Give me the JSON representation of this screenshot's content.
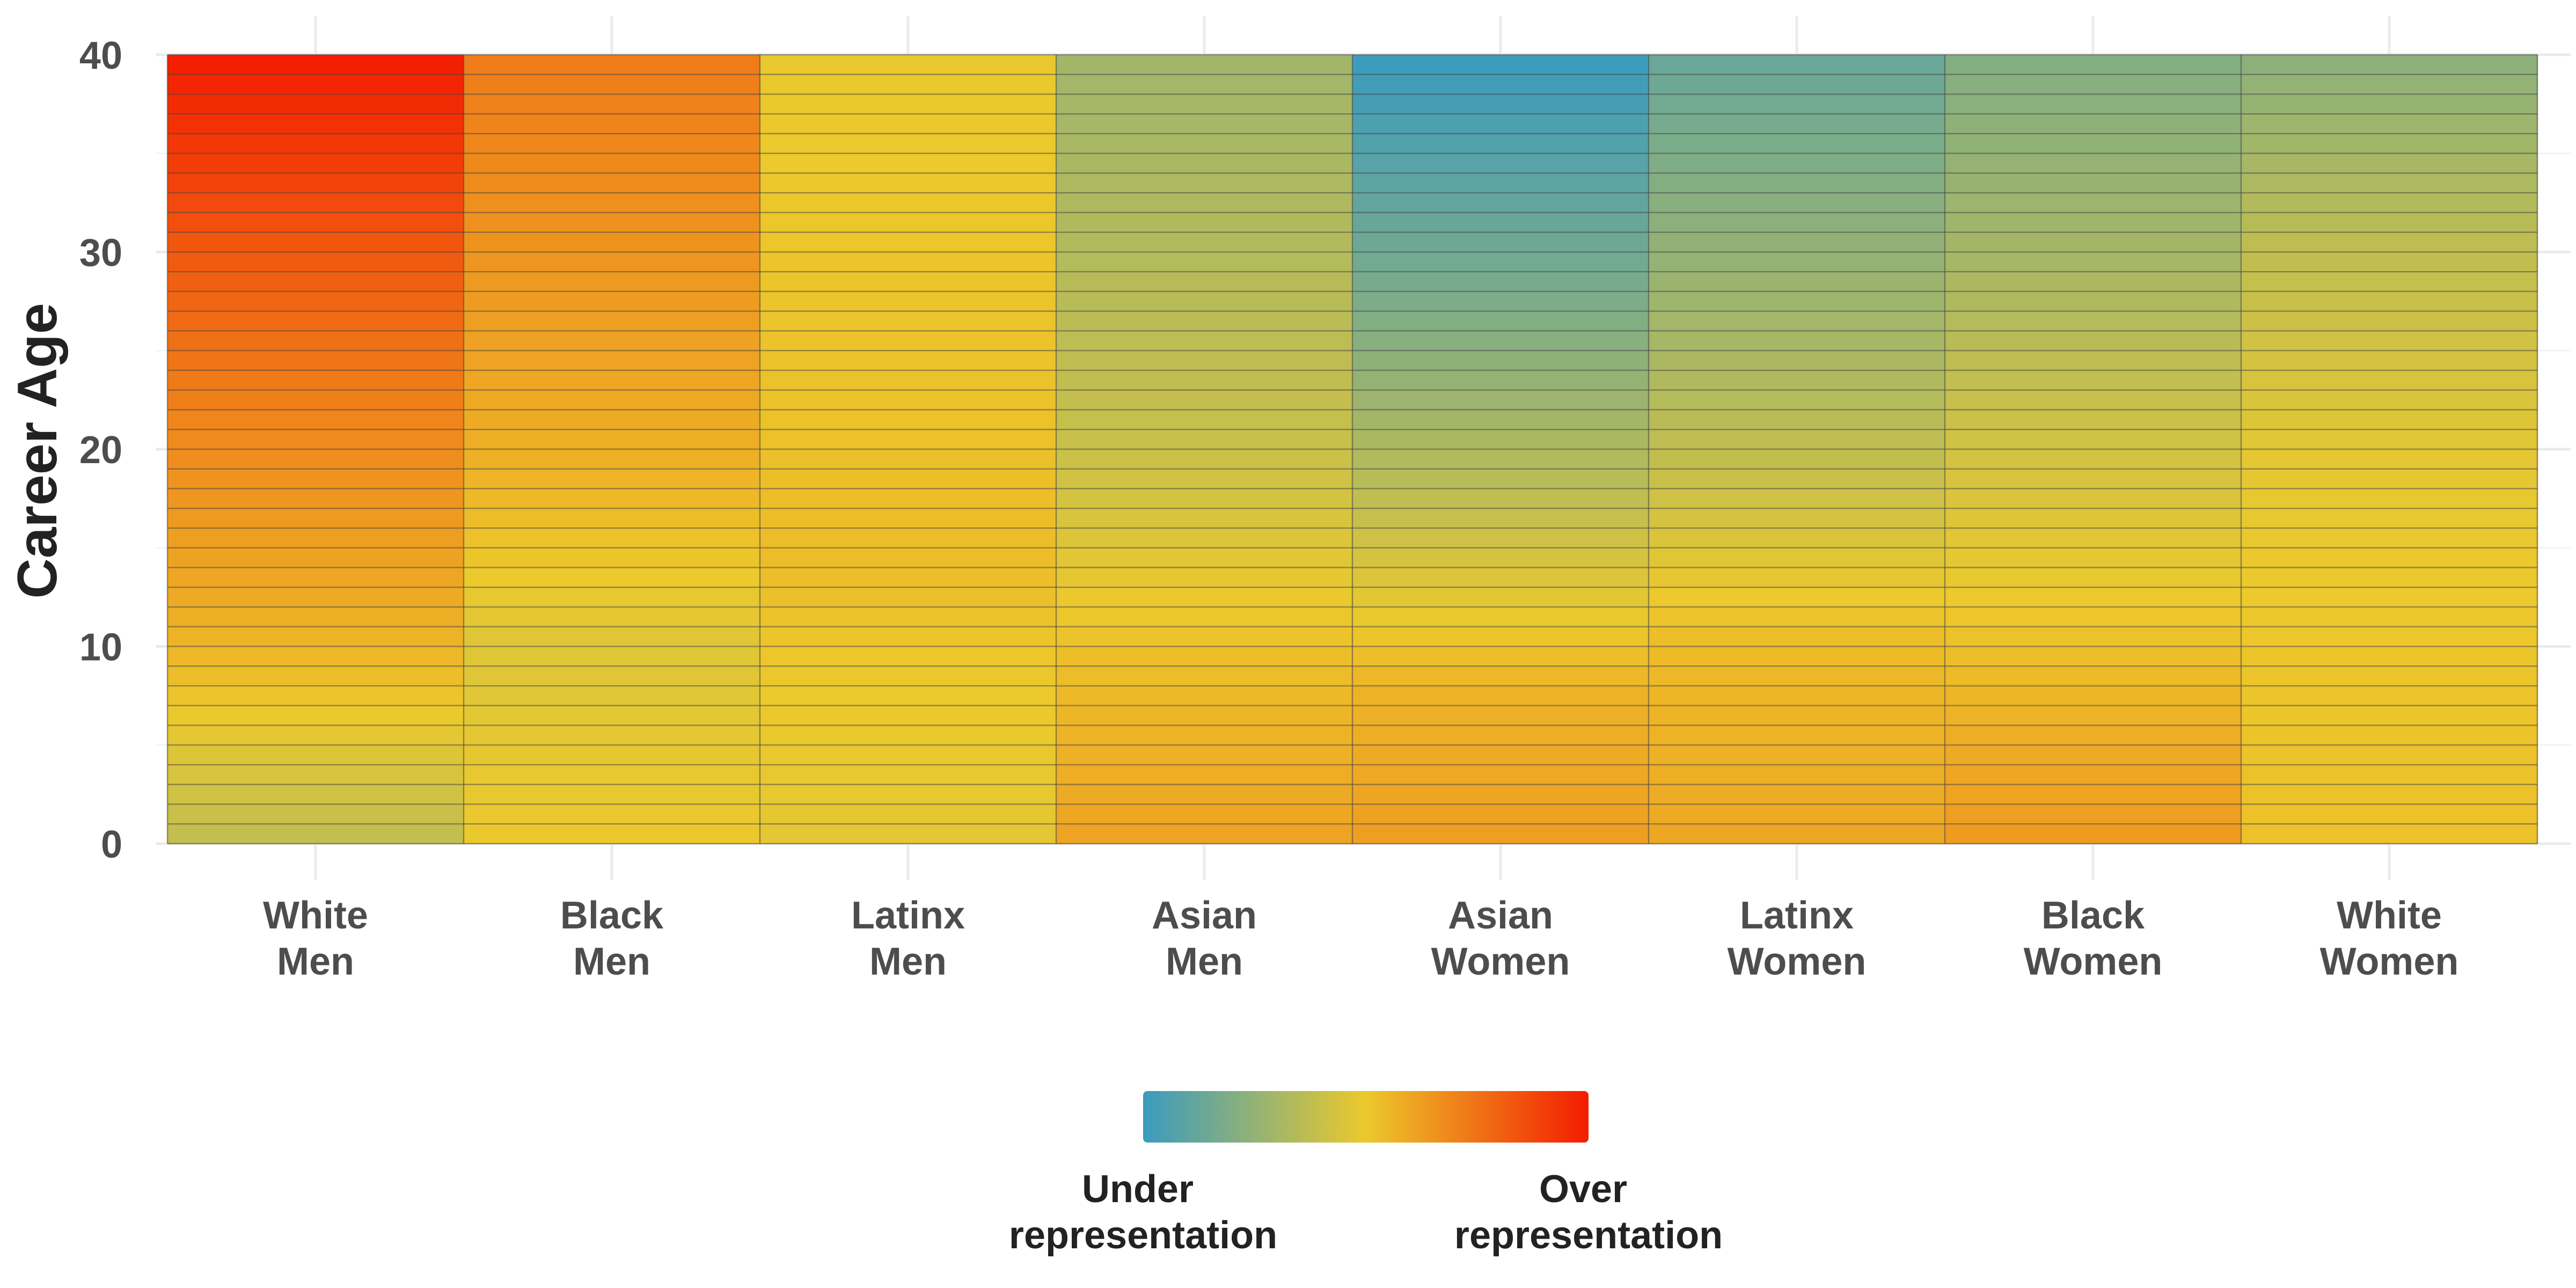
{
  "chart_data": {
    "type": "heatmap",
    "title": "",
    "xlabel": "",
    "ylabel": "Career Age",
    "categories": [
      [
        "White",
        "Men"
      ],
      [
        "Black",
        "Men"
      ],
      [
        "Latinx",
        "Men"
      ],
      [
        "Asian",
        "Men"
      ],
      [
        "Asian",
        "Women"
      ],
      [
        "Latinx",
        "Women"
      ],
      [
        "Black",
        "Women"
      ],
      [
        "White",
        "Women"
      ]
    ],
    "y": {
      "min": 0,
      "max": 40,
      "ticks": [
        0,
        10,
        20,
        30,
        40
      ],
      "cell_step": 1
    },
    "value_scale": {
      "min": -1,
      "max": 1,
      "mid": 0
    },
    "colors": {
      "low": "#3a9bbf",
      "mid": "#ecc92c",
      "high": "#f41c00"
    },
    "legend": {
      "position": "bottom",
      "low_label": [
        "Under",
        "representation"
      ],
      "high_label": [
        "Over",
        "representation"
      ]
    },
    "grid": true,
    "series": [
      {
        "anchors": [
          [
            0,
            -0.25
          ],
          [
            10,
            0.12
          ],
          [
            20,
            0.35
          ],
          [
            30,
            0.65
          ],
          [
            40,
            1.0
          ]
        ]
      },
      {
        "anchors": [
          [
            0,
            0.0
          ],
          [
            10,
            -0.08
          ],
          [
            20,
            0.15
          ],
          [
            30,
            0.3
          ],
          [
            40,
            0.45
          ]
        ]
      },
      {
        "anchors": [
          [
            0,
            -0.05
          ],
          [
            10,
            0.02
          ],
          [
            15,
            0.08
          ],
          [
            20,
            0.05
          ],
          [
            30,
            0.02
          ],
          [
            40,
            -0.02
          ]
        ]
      },
      {
        "anchors": [
          [
            0,
            0.22
          ],
          [
            10,
            0.05
          ],
          [
            20,
            -0.2
          ],
          [
            30,
            -0.32
          ],
          [
            40,
            -0.42
          ]
        ]
      },
      {
        "anchors": [
          [
            0,
            0.25
          ],
          [
            8,
            0.12
          ],
          [
            15,
            -0.15
          ],
          [
            25,
            -0.55
          ],
          [
            40,
            -1.0
          ]
        ]
      },
      {
        "anchors": [
          [
            0,
            0.2
          ],
          [
            10,
            0.08
          ],
          [
            20,
            -0.25
          ],
          [
            30,
            -0.5
          ],
          [
            40,
            -0.75
          ]
        ]
      },
      {
        "anchors": [
          [
            0,
            0.28
          ],
          [
            10,
            0.05
          ],
          [
            20,
            -0.15
          ],
          [
            30,
            -0.4
          ],
          [
            40,
            -0.6
          ]
        ]
      },
      {
        "anchors": [
          [
            0,
            0.05
          ],
          [
            10,
            0.02
          ],
          [
            20,
            -0.05
          ],
          [
            30,
            -0.25
          ],
          [
            40,
            -0.55
          ]
        ]
      }
    ]
  }
}
